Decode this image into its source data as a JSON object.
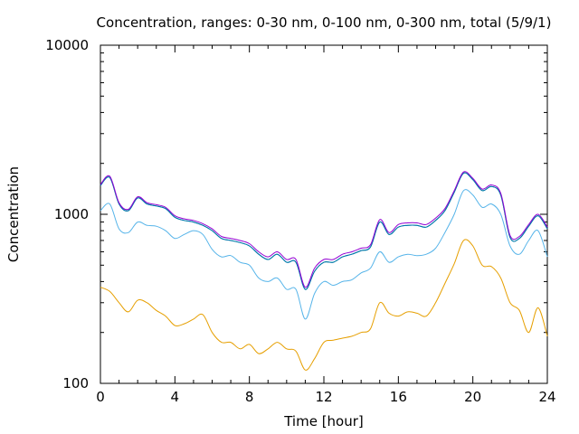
{
  "chart_data": {
    "type": "line",
    "title": "Concentration, ranges: 0-30 nm, 0-100 nm, 0-300 nm, total (5/9/1)",
    "xlabel": "Time [hour]",
    "ylabel": "Concentration",
    "xlim": [
      0,
      24
    ],
    "ylim": [
      100,
      10000
    ],
    "yscale": "log",
    "grid": false,
    "legend": "none",
    "xticks": [
      0,
      4,
      8,
      12,
      16,
      20,
      24
    ],
    "xtick_labels": [
      "0",
      "4",
      "8",
      "12",
      "16",
      "20",
      "24"
    ],
    "yticks": [
      100,
      1000,
      10000
    ],
    "ytick_labels": [
      "100",
      "1000",
      "10000"
    ],
    "x": [
      0,
      0.5,
      1,
      1.5,
      2,
      2.5,
      3,
      3.5,
      4,
      4.5,
      5,
      5.5,
      6,
      6.5,
      7,
      7.5,
      8,
      8.5,
      9,
      9.5,
      10,
      10.5,
      11,
      11.5,
      12,
      12.5,
      13,
      13.5,
      14,
      14.5,
      15,
      15.5,
      16,
      16.5,
      17,
      17.5,
      18,
      18.5,
      19,
      19.5,
      20,
      20.5,
      21,
      21.5,
      22,
      22.5,
      23,
      23.5,
      24
    ],
    "series": [
      {
        "color": "#e69f00",
        "values": [
          370,
          350,
          300,
          265,
          310,
          300,
          270,
          250,
          220,
          225,
          240,
          255,
          200,
          175,
          175,
          160,
          170,
          150,
          160,
          175,
          160,
          155,
          120,
          140,
          175,
          180,
          185,
          190,
          200,
          210,
          300,
          260,
          250,
          265,
          260,
          250,
          300,
          390,
          510,
          700,
          650,
          500,
          490,
          420,
          300,
          270,
          200,
          280,
          190
        ]
      },
      {
        "color": "#56b4e9",
        "values": [
          1050,
          1150,
          820,
          780,
          900,
          860,
          850,
          800,
          720,
          760,
          800,
          760,
          620,
          560,
          570,
          520,
          500,
          420,
          400,
          420,
          360,
          360,
          240,
          340,
          400,
          380,
          400,
          410,
          450,
          480,
          600,
          520,
          560,
          580,
          570,
          580,
          630,
          780,
          1000,
          1380,
          1300,
          1100,
          1150,
          1000,
          650,
          580,
          700,
          800,
          560
        ]
      },
      {
        "color": "#009e73",
        "values": [
          1480,
          1650,
          1150,
          1050,
          1250,
          1150,
          1120,
          1080,
          960,
          920,
          900,
          860,
          800,
          720,
          700,
          680,
          650,
          580,
          540,
          580,
          520,
          520,
          360,
          460,
          520,
          520,
          560,
          580,
          610,
          640,
          900,
          760,
          840,
          860,
          860,
          840,
          920,
          1050,
          1350,
          1750,
          1600,
          1380,
          1460,
          1300,
          730,
          720,
          850,
          980,
          820
        ]
      },
      {
        "color": "#0072b2",
        "values": [
          1480,
          1650,
          1150,
          1050,
          1250,
          1150,
          1120,
          1080,
          960,
          920,
          900,
          860,
          800,
          720,
          700,
          680,
          650,
          580,
          540,
          580,
          520,
          520,
          360,
          460,
          520,
          520,
          560,
          580,
          610,
          640,
          900,
          760,
          840,
          860,
          860,
          840,
          920,
          1050,
          1350,
          1750,
          1600,
          1380,
          1460,
          1300,
          730,
          720,
          850,
          980,
          820
        ]
      },
      {
        "color": "#9400d3",
        "values": [
          1500,
          1680,
          1170,
          1070,
          1270,
          1170,
          1140,
          1100,
          980,
          940,
          920,
          880,
          820,
          740,
          720,
          700,
          670,
          600,
          560,
          600,
          540,
          540,
          370,
          480,
          540,
          540,
          580,
          600,
          630,
          660,
          930,
          780,
          870,
          890,
          890,
          870,
          950,
          1080,
          1380,
          1780,
          1630,
          1410,
          1490,
          1330,
          750,
          740,
          870,
          1000,
          840
        ]
      }
    ]
  }
}
